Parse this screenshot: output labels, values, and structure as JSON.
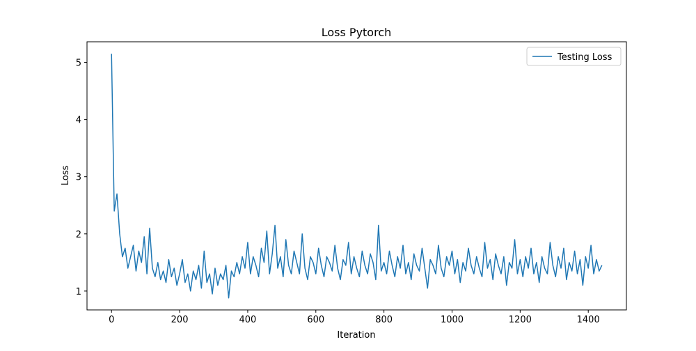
{
  "chart_data": {
    "type": "line",
    "title": "Loss Pytorch",
    "x_label": "Iteration",
    "y_label": "Loss",
    "x": [
      0,
      8,
      16,
      24,
      32,
      40,
      48,
      56,
      64,
      72,
      80,
      88,
      96,
      104,
      112,
      120,
      128,
      136,
      144,
      152,
      160,
      168,
      176,
      184,
      192,
      200,
      208,
      216,
      224,
      232,
      240,
      248,
      256,
      264,
      272,
      280,
      288,
      296,
      304,
      312,
      320,
      328,
      336,
      344,
      352,
      360,
      368,
      376,
      384,
      392,
      400,
      408,
      416,
      424,
      432,
      440,
      448,
      456,
      464,
      472,
      480,
      488,
      496,
      504,
      512,
      520,
      528,
      536,
      544,
      552,
      560,
      568,
      576,
      584,
      592,
      600,
      608,
      616,
      624,
      632,
      640,
      648,
      656,
      664,
      672,
      680,
      688,
      696,
      704,
      712,
      720,
      728,
      736,
      744,
      752,
      760,
      768,
      776,
      784,
      792,
      800,
      808,
      816,
      824,
      832,
      840,
      848,
      856,
      864,
      872,
      880,
      888,
      896,
      904,
      912,
      920,
      928,
      936,
      944,
      952,
      960,
      968,
      976,
      984,
      992,
      1000,
      1008,
      1016,
      1024,
      1032,
      1040,
      1048,
      1056,
      1064,
      1072,
      1080,
      1088,
      1096,
      1104,
      1112,
      1120,
      1128,
      1136,
      1144,
      1152,
      1160,
      1168,
      1176,
      1184,
      1192,
      1200,
      1208,
      1216,
      1224,
      1232,
      1240,
      1248,
      1256,
      1264,
      1272,
      1280,
      1288,
      1296,
      1304,
      1312,
      1320,
      1328,
      1336,
      1344,
      1352,
      1360,
      1368,
      1376,
      1384,
      1392,
      1400,
      1408,
      1416,
      1424,
      1432,
      1440
    ],
    "series": [
      {
        "name": "Testing Loss",
        "color": "#1f77b4",
        "values": [
          5.15,
          2.4,
          2.7,
          2.0,
          1.6,
          1.75,
          1.4,
          1.6,
          1.8,
          1.35,
          1.7,
          1.5,
          1.95,
          1.3,
          2.1,
          1.4,
          1.25,
          1.5,
          1.2,
          1.35,
          1.15,
          1.55,
          1.25,
          1.4,
          1.1,
          1.3,
          1.55,
          1.15,
          1.3,
          1.0,
          1.35,
          1.2,
          1.45,
          1.05,
          1.7,
          1.15,
          1.3,
          0.95,
          1.4,
          1.1,
          1.3,
          1.2,
          1.45,
          0.88,
          1.35,
          1.25,
          1.5,
          1.3,
          1.6,
          1.4,
          1.85,
          1.3,
          1.6,
          1.45,
          1.25,
          1.75,
          1.5,
          2.05,
          1.3,
          1.65,
          2.15,
          1.4,
          1.6,
          1.25,
          1.9,
          1.45,
          1.3,
          1.7,
          1.5,
          1.3,
          2.0,
          1.4,
          1.2,
          1.6,
          1.5,
          1.3,
          1.75,
          1.45,
          1.25,
          1.6,
          1.5,
          1.35,
          1.8,
          1.4,
          1.2,
          1.55,
          1.45,
          1.85,
          1.3,
          1.6,
          1.4,
          1.25,
          1.7,
          1.45,
          1.3,
          1.65,
          1.5,
          1.2,
          2.15,
          1.35,
          1.5,
          1.3,
          1.7,
          1.45,
          1.25,
          1.6,
          1.4,
          1.8,
          1.3,
          1.5,
          1.2,
          1.65,
          1.45,
          1.35,
          1.75,
          1.4,
          1.05,
          1.55,
          1.45,
          1.3,
          1.8,
          1.4,
          1.25,
          1.6,
          1.45,
          1.7,
          1.3,
          1.55,
          1.15,
          1.5,
          1.35,
          1.75,
          1.45,
          1.3,
          1.6,
          1.4,
          1.25,
          1.85,
          1.4,
          1.55,
          1.2,
          1.65,
          1.45,
          1.3,
          1.6,
          1.1,
          1.5,
          1.4,
          1.9,
          1.3,
          1.55,
          1.25,
          1.6,
          1.4,
          1.75,
          1.3,
          1.5,
          1.15,
          1.6,
          1.4,
          1.3,
          1.85,
          1.45,
          1.25,
          1.6,
          1.4,
          1.75,
          1.2,
          1.5,
          1.35,
          1.7,
          1.3,
          1.55,
          1.1,
          1.6,
          1.4,
          1.8,
          1.3,
          1.55,
          1.35,
          1.45
        ]
      }
    ],
    "xlim": [
      -72,
      1512
    ],
    "xticks": [
      0,
      200,
      400,
      600,
      800,
      1000,
      1200,
      1400
    ],
    "ylim": [
      0.67,
      5.36
    ],
    "yticks": [
      1,
      2,
      3,
      4,
      5
    ],
    "legend": "upper right"
  }
}
